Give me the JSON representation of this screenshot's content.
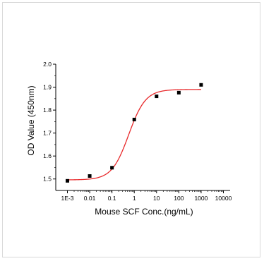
{
  "chart_data": {
    "type": "scatter",
    "xlabel": "Mouse SCF Conc.(ng/mL)",
    "ylabel": "OD Value (450nm)",
    "x_scale": "log",
    "xlim": [
      0.0003,
      20000
    ],
    "ylim": [
      1.45,
      2.0
    ],
    "x_ticks": [
      0.001,
      0.01,
      0.1,
      1,
      10,
      100,
      1000,
      10000
    ],
    "x_tick_labels": [
      "1E-3",
      "0.01",
      "0.1",
      "1",
      "10",
      "100",
      "1000",
      "10000"
    ],
    "y_ticks": [
      1.5,
      1.6,
      1.7,
      1.8,
      1.9,
      2.0
    ],
    "y_tick_labels": [
      "1.5",
      "1.6",
      "1.7",
      "1.8",
      "1.9",
      "2.0"
    ],
    "grid": false,
    "series": [
      {
        "kind": "points",
        "marker": "square",
        "color": "#000000",
        "x": [
          0.001,
          0.01,
          0.1,
          1,
          10,
          100,
          1000
        ],
        "y": [
          1.492,
          1.513,
          1.549,
          1.759,
          1.86,
          1.876,
          1.91
        ]
      },
      {
        "kind": "fit-curve",
        "color": "#e8292b",
        "curve_x_range": [
          0.001,
          1000
        ],
        "fit": {
          "bottom": 1.496,
          "top": 1.89,
          "log_ec50": -0.25,
          "hill": 1.15
        }
      }
    ]
  }
}
